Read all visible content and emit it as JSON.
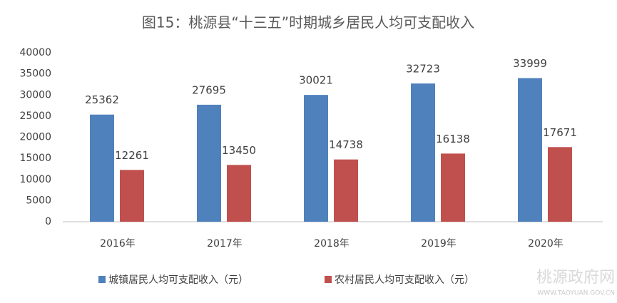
{
  "chart_data": {
    "type": "bar",
    "title": "图15：桃源县“十三五”时期城乡居民人均可支配收入",
    "categories": [
      "2016年",
      "2017年",
      "2018年",
      "2019年",
      "2020年"
    ],
    "series": [
      {
        "name": "城镇居民人均可支配收入（元）",
        "color": "#4f81bd",
        "values": [
          25362,
          27695,
          30021,
          32723,
          33999
        ]
      },
      {
        "name": "农村居民人均可支配收入（元）",
        "color": "#c0504d",
        "values": [
          12261,
          13450,
          14738,
          16138,
          17671
        ]
      }
    ],
    "ylim": [
      0,
      40000
    ],
    "yticks": [
      0,
      5000,
      10000,
      15000,
      20000,
      25000,
      30000,
      35000,
      40000
    ],
    "grid": false,
    "legend": "bottom"
  },
  "watermark": {
    "name": "桃源政府网",
    "url": "WWW.TAOYUAN.GOV.CN"
  }
}
